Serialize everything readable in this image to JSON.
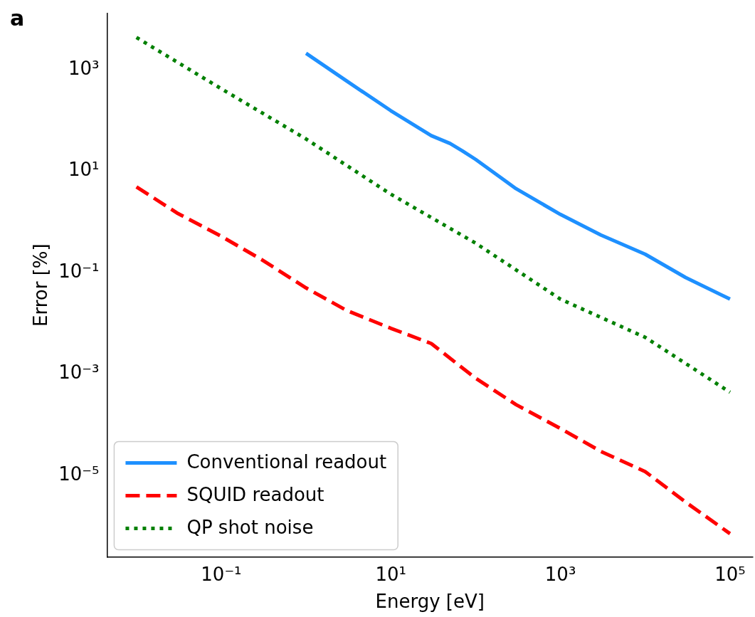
{
  "chart_data": {
    "type": "line",
    "xlabel": "Energy [eV]",
    "ylabel": "Error [%]",
    "log": "xy",
    "grid": false,
    "legend": "bottom left",
    "marker": "none",
    "xlim": [
      0.0045,
      186000
    ],
    "ylim": [
      2.5e-07,
      12900
    ],
    "xticks": [
      {
        "value": 0.1,
        "label": "10⁻¹"
      },
      {
        "value": 10,
        "label": "10¹"
      },
      {
        "value": 1000,
        "label": "10³"
      },
      {
        "value": 100000,
        "label": "10⁵"
      }
    ],
    "yticks": [
      {
        "value": 1e-05,
        "label": "10⁻⁵"
      },
      {
        "value": 0.001,
        "label": "10⁻³"
      },
      {
        "value": 0.1,
        "label": "10⁻¹"
      },
      {
        "value": 10,
        "label": "10¹"
      },
      {
        "value": 1000,
        "label": "10³"
      }
    ],
    "annotations": [
      "a"
    ],
    "series": [
      {
        "name": "Conventional readout",
        "color": "#1e90ff",
        "line_style": "solid",
        "x": [
          1,
          3,
          10,
          30,
          50,
          70,
          100,
          300,
          1000,
          3000,
          10000,
          30000,
          100000
        ],
        "values": [
          2100,
          600,
          155,
          50,
          35,
          25,
          17,
          4.5,
          1.4,
          0.55,
          0.23,
          0.08,
          0.03
        ]
      },
      {
        "name": "SQUID readout",
        "color": "#ff0000",
        "line_style": "dashed",
        "x": [
          0.01,
          0.03,
          0.1,
          0.3,
          1,
          3,
          10,
          30,
          100,
          300,
          1000,
          3000,
          10000,
          30000,
          100000
        ],
        "values": [
          4.9,
          1.5,
          0.52,
          0.18,
          0.05,
          0.018,
          0.008,
          0.004,
          0.00083,
          0.00025,
          8.5e-05,
          3e-05,
          1.2e-05,
          3e-06,
          7.2e-07
        ]
      },
      {
        "name": "QP shot noise",
        "color": "#008000",
        "line_style": "dotted",
        "x": [
          0.01,
          0.1,
          1,
          10,
          100,
          1000,
          10000,
          100000
        ],
        "values": [
          4300,
          420,
          43,
          3.5,
          0.38,
          0.03,
          0.0053,
          0.00044
        ]
      }
    ]
  }
}
